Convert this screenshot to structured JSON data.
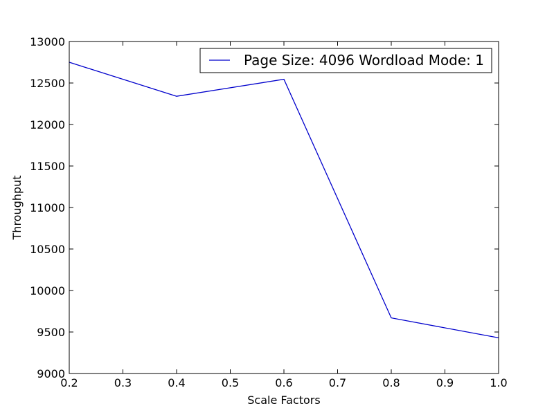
{
  "chart_data": {
    "type": "line",
    "title": "",
    "xlabel": "Scale Factors",
    "ylabel": "Throughput",
    "xlim": [
      0.2,
      1.0
    ],
    "ylim": [
      9000,
      13000
    ],
    "xticks": [
      "0.2",
      "0.3",
      "0.4",
      "0.5",
      "0.6",
      "0.7",
      "0.8",
      "0.9",
      "1.0"
    ],
    "yticks": [
      "9000",
      "9500",
      "10000",
      "10500",
      "11000",
      "11500",
      "12000",
      "12500",
      "13000"
    ],
    "grid": false,
    "legend_position": "top-right",
    "series": [
      {
        "name": "Page Size: 4096 Wordload Mode: 1",
        "color": "#0000cc",
        "x": [
          0.2,
          0.4,
          0.6,
          0.8,
          1.0
        ],
        "y": [
          12750,
          12340,
          12545,
          9670,
          9430
        ]
      }
    ]
  }
}
